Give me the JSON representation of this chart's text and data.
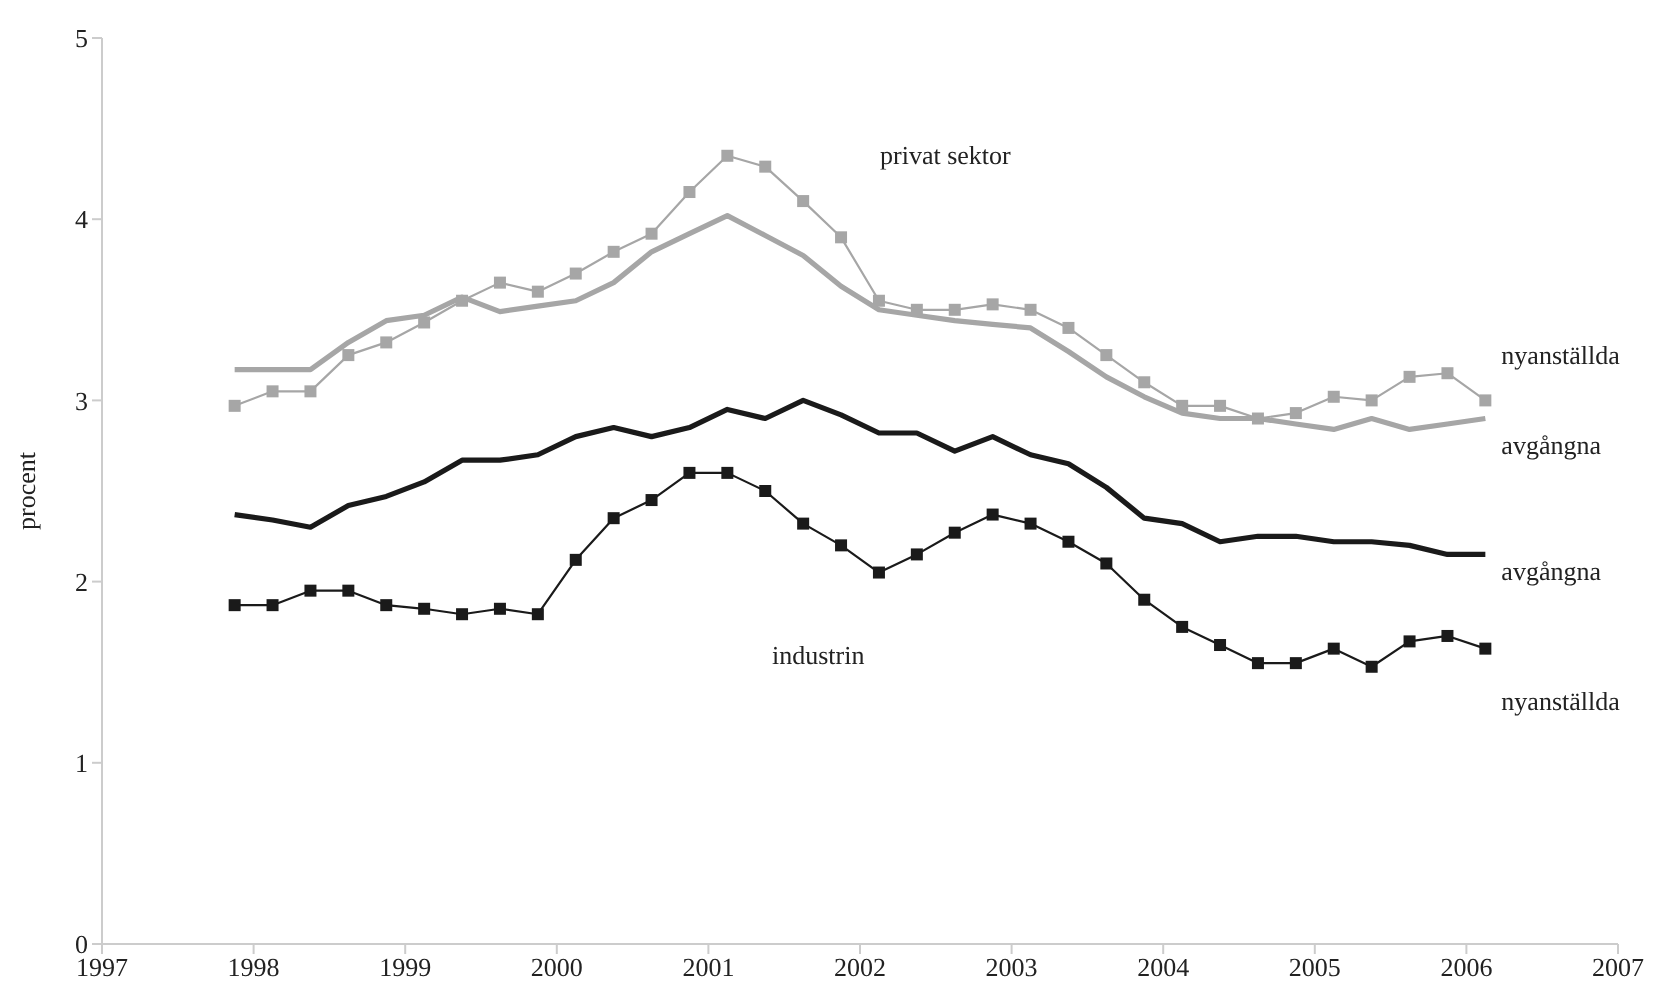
{
  "chart_data": {
    "type": "line",
    "ylabel": "procent",
    "x": [
      1997.875,
      1998.125,
      1998.375,
      1998.625,
      1998.875,
      1999.125,
      1999.375,
      1999.625,
      1999.875,
      2000.125,
      2000.375,
      2000.625,
      2000.875,
      2001.125,
      2001.375,
      2001.625,
      2001.875,
      2002.125,
      2002.375,
      2002.625,
      2002.875,
      2003.125,
      2003.375,
      2003.625,
      2003.875,
      2004.125,
      2004.375,
      2004.625,
      2004.875,
      2005.125,
      2005.375,
      2005.625,
      2005.875,
      2006.125
    ],
    "series": [
      {
        "name": "nyanställda",
        "color": "#a6a6a6",
        "marker": "square",
        "values": [
          2.97,
          3.05,
          3.05,
          3.25,
          3.32,
          3.43,
          3.55,
          3.65,
          3.6,
          3.7,
          3.82,
          3.92,
          4.15,
          4.35,
          4.29,
          4.1,
          3.9,
          3.55,
          3.5,
          3.5,
          3.53,
          3.5,
          3.4,
          3.25,
          3.1,
          2.97,
          2.97,
          2.9,
          2.93,
          3.02,
          3.0,
          3.13,
          3.15,
          3.0
        ]
      },
      {
        "name": "avgångna",
        "color": "#a6a6a6",
        "marker": "none",
        "values": [
          3.17,
          3.17,
          3.17,
          3.32,
          3.44,
          3.47,
          3.57,
          3.49,
          3.52,
          3.55,
          3.65,
          3.82,
          3.92,
          4.02,
          3.91,
          3.8,
          3.63,
          3.5,
          3.47,
          3.44,
          3.42,
          3.4,
          3.27,
          3.13,
          3.02,
          2.93,
          2.9,
          2.9,
          2.87,
          2.84,
          2.9,
          2.84,
          2.87,
          2.9
        ]
      },
      {
        "name": "avgångna",
        "color": "#1a1a1a",
        "marker": "none",
        "values": [
          2.37,
          2.34,
          2.3,
          2.42,
          2.47,
          2.55,
          2.67,
          2.67,
          2.7,
          2.8,
          2.85,
          2.8,
          2.85,
          2.95,
          2.9,
          3.0,
          2.92,
          2.82,
          2.82,
          2.72,
          2.8,
          2.7,
          2.65,
          2.52,
          2.35,
          2.32,
          2.22,
          2.25,
          2.25,
          2.22,
          2.22,
          2.2,
          2.15,
          2.15
        ]
      },
      {
        "name": "nyanställda",
        "color": "#1a1a1a",
        "marker": "square",
        "values": [
          1.87,
          1.87,
          1.95,
          1.95,
          1.87,
          1.85,
          1.82,
          1.85,
          1.82,
          2.12,
          2.35,
          2.45,
          2.6,
          2.6,
          2.5,
          2.32,
          2.2,
          2.05,
          2.15,
          2.27,
          2.37,
          2.32,
          2.22,
          2.1,
          1.9,
          1.75,
          1.65,
          1.55,
          1.55,
          1.63,
          1.53,
          1.67,
          1.7,
          1.63
        ]
      }
    ],
    "annotations": [
      "privat sektor",
      "industrin"
    ],
    "xlim": [
      1997,
      2007
    ],
    "xticks": [
      1997,
      1998,
      1999,
      2000,
      2001,
      2002,
      2003,
      2004,
      2005,
      2006,
      2007
    ],
    "ylim": [
      0,
      5
    ],
    "yticks": [
      0,
      1,
      2,
      3,
      4,
      5
    ],
    "grid": false,
    "legend": false
  }
}
